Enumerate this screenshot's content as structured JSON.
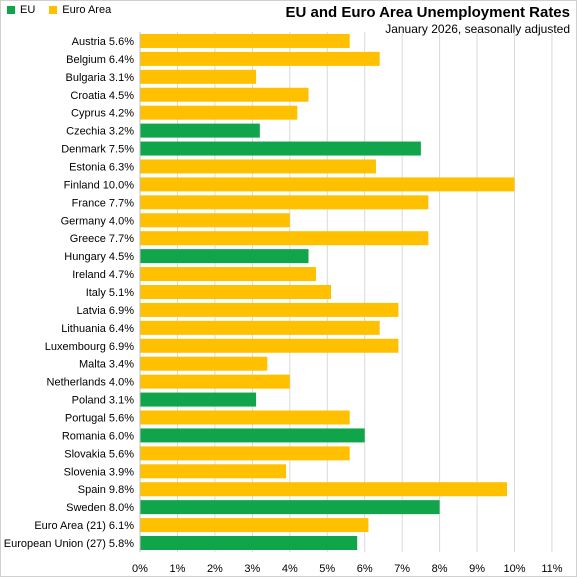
{
  "colors": {
    "eu": "#10A54A",
    "euro_area": "#FFC000",
    "grid": "#D9D9D9"
  },
  "legend": [
    {
      "label": "EU",
      "color": "#10A54A"
    },
    {
      "label": "Euro Area",
      "color": "#FFC000"
    }
  ],
  "chart_data": {
    "type": "bar",
    "orientation": "horizontal",
    "title": "EU and Euro Area Unemployment Rates",
    "subtitle": "January 2026, seasonally adjusted",
    "xlim": [
      0,
      11
    ],
    "x_ticks": [
      "0%",
      "1%",
      "2%",
      "3%",
      "4%",
      "5%",
      "6%",
      "7%",
      "8%",
      "9%",
      "10%",
      "11%"
    ],
    "grid": "vertical",
    "legend_position": "top-left",
    "categories": [
      "Austria 5.6%",
      "Belgium 6.4%",
      "Bulgaria 3.1%",
      "Croatia 4.5%",
      "Cyprus 4.2%",
      "Czechia 3.2%",
      "Denmark 7.5%",
      "Estonia 6.3%",
      "Finland 10.0%",
      "France 7.7%",
      "Germany 4.0%",
      "Greece 7.7%",
      "Hungary 4.5%",
      "Ireland 4.7%",
      "Italy 5.1%",
      "Latvia 6.9%",
      "Lithuania 6.4%",
      "Luxembourg 6.9%",
      "Malta 3.4%",
      "Netherlands 4.0%",
      "Poland 3.1%",
      "Portugal 5.6%",
      "Romania 6.0%",
      "Slovakia 5.6%",
      "Slovenia 3.9%",
      "Spain 9.8%",
      "Sweden 8.0%",
      "Euro Area (21) 6.1%",
      "European Union (27) 5.8%"
    ],
    "values": [
      5.6,
      6.4,
      3.1,
      4.5,
      4.2,
      3.2,
      7.5,
      6.3,
      10.0,
      7.7,
      4.0,
      7.7,
      4.5,
      4.7,
      5.1,
      6.9,
      6.4,
      6.9,
      3.4,
      4.0,
      3.1,
      5.6,
      6.0,
      5.6,
      3.9,
      9.8,
      8.0,
      6.1,
      5.8
    ],
    "groups": [
      "Euro Area",
      "Euro Area",
      "Euro Area",
      "Euro Area",
      "Euro Area",
      "EU",
      "EU",
      "Euro Area",
      "Euro Area",
      "Euro Area",
      "Euro Area",
      "Euro Area",
      "EU",
      "Euro Area",
      "Euro Area",
      "Euro Area",
      "Euro Area",
      "Euro Area",
      "Euro Area",
      "Euro Area",
      "EU",
      "Euro Area",
      "EU",
      "Euro Area",
      "Euro Area",
      "Euro Area",
      "EU",
      "Euro Area",
      "EU"
    ]
  }
}
